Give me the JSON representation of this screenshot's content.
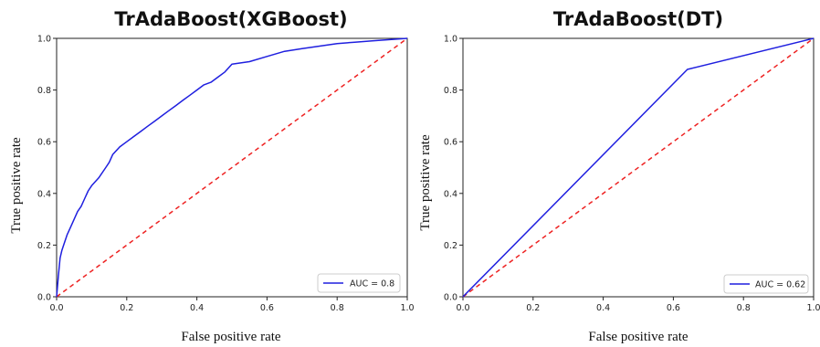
{
  "chart_data": [
    {
      "type": "line",
      "title": "TrAdaBoost(XGBoost)",
      "xlabel": "False positive rate",
      "ylabel": "True positive rate",
      "xlim": [
        0,
        1
      ],
      "ylim": [
        0,
        1
      ],
      "xticks": [
        "0.0",
        "0.2",
        "0.4",
        "0.6",
        "0.8",
        "1.0"
      ],
      "yticks": [
        "0.0",
        "0.2",
        "0.4",
        "0.6",
        "0.8",
        "1.0"
      ],
      "grid": false,
      "legend_position": "lower-right",
      "series": [
        {
          "name": "AUC = 0.8",
          "color": "#1f1fdf",
          "style": "solid",
          "x": [
            0.0,
            0.005,
            0.01,
            0.015,
            0.02,
            0.03,
            0.04,
            0.05,
            0.06,
            0.07,
            0.08,
            0.09,
            0.1,
            0.12,
            0.14,
            0.15,
            0.16,
            0.18,
            0.2,
            0.22,
            0.24,
            0.26,
            0.28,
            0.3,
            0.32,
            0.34,
            0.36,
            0.38,
            0.4,
            0.42,
            0.44,
            0.46,
            0.48,
            0.5,
            0.55,
            0.6,
            0.65,
            0.7,
            0.75,
            0.8,
            0.85,
            0.9,
            0.95,
            1.0
          ],
          "y": [
            0.0,
            0.08,
            0.15,
            0.18,
            0.2,
            0.24,
            0.27,
            0.3,
            0.33,
            0.35,
            0.38,
            0.41,
            0.43,
            0.46,
            0.5,
            0.52,
            0.55,
            0.58,
            0.6,
            0.62,
            0.64,
            0.66,
            0.68,
            0.7,
            0.72,
            0.74,
            0.76,
            0.78,
            0.8,
            0.82,
            0.83,
            0.85,
            0.87,
            0.9,
            0.91,
            0.93,
            0.95,
            0.96,
            0.97,
            0.98,
            0.985,
            0.99,
            0.995,
            1.0
          ]
        },
        {
          "name": "",
          "color": "#ee2222",
          "style": "dashed",
          "x": [
            0,
            1
          ],
          "y": [
            0,
            1
          ]
        }
      ]
    },
    {
      "type": "line",
      "title": "TrAdaBoost(DT)",
      "xlabel": "False positive rate",
      "ylabel": "True positive rate",
      "xlim": [
        0,
        1
      ],
      "ylim": [
        0,
        1
      ],
      "xticks": [
        "0.0",
        "0.2",
        "0.4",
        "0.6",
        "0.8",
        "1.0"
      ],
      "yticks": [
        "0.0",
        "0.2",
        "0.4",
        "0.6",
        "0.8",
        "1.0"
      ],
      "grid": false,
      "legend_position": "lower-right",
      "series": [
        {
          "name": "AUC = 0.62",
          "color": "#1f1fdf",
          "style": "solid",
          "x": [
            0.0,
            0.64,
            1.0
          ],
          "y": [
            0.0,
            0.88,
            1.0
          ]
        },
        {
          "name": "",
          "color": "#ee2222",
          "style": "dashed",
          "x": [
            0,
            1
          ],
          "y": [
            0,
            1
          ]
        }
      ]
    }
  ]
}
